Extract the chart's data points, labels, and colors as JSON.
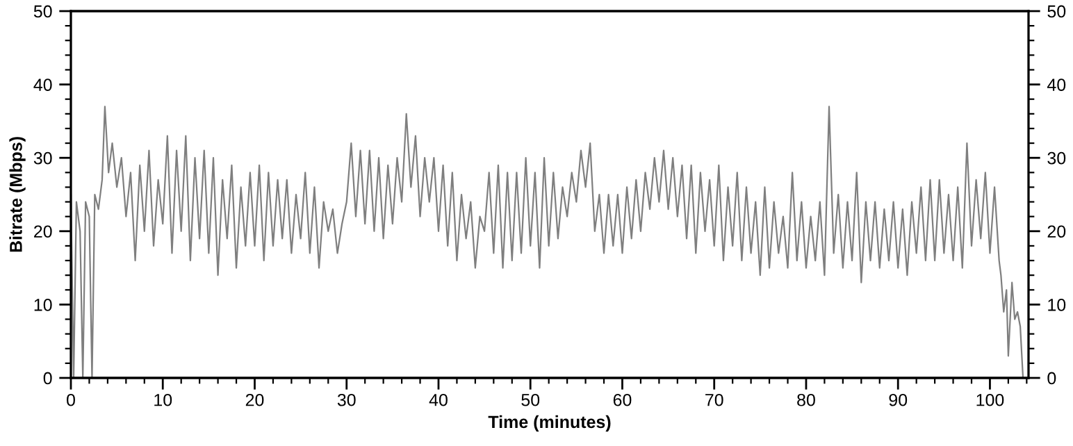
{
  "chart_data": {
    "type": "line",
    "xlabel": "Time (minutes)",
    "ylabel": "Bitrate (Mbps)",
    "xlim": [
      0,
      104.2
    ],
    "ylim": [
      0,
      50
    ],
    "y2lim": [
      0,
      50
    ],
    "xticks": [
      0,
      {
        "value": 2,
        "label": null
      },
      {
        "value": 4,
        "label": null
      },
      {
        "value": 6,
        "label": null
      },
      {
        "value": 8,
        "label": null
      },
      10,
      {
        "value": 12,
        "label": null
      },
      {
        "value": 14,
        "label": null
      },
      {
        "value": 16,
        "label": null
      },
      {
        "value": 18,
        "label": null
      },
      20,
      {
        "value": 22,
        "label": null
      },
      {
        "value": 24,
        "label": null
      },
      {
        "value": 26,
        "label": null
      },
      {
        "value": 28,
        "label": null
      },
      30,
      {
        "value": 32,
        "label": null
      },
      {
        "value": 34,
        "label": null
      },
      {
        "value": 36,
        "label": null
      },
      {
        "value": 38,
        "label": null
      },
      40,
      {
        "value": 42,
        "label": null
      },
      {
        "value": 44,
        "label": null
      },
      {
        "value": 46,
        "label": null
      },
      {
        "value": 48,
        "label": null
      },
      50,
      {
        "value": 52,
        "label": null
      },
      {
        "value": 54,
        "label": null
      },
      {
        "value": 56,
        "label": null
      },
      {
        "value": 58,
        "label": null
      },
      60,
      {
        "value": 62,
        "label": null
      },
      {
        "value": 64,
        "label": null
      },
      {
        "value": 66,
        "label": null
      },
      {
        "value": 68,
        "label": null
      },
      70,
      {
        "value": 72,
        "label": null
      },
      {
        "value": 74,
        "label": null
      },
      {
        "value": 76,
        "label": null
      },
      {
        "value": 78,
        "label": null
      },
      80,
      {
        "value": 82,
        "label": null
      },
      {
        "value": 84,
        "label": null
      },
      {
        "value": 86,
        "label": null
      },
      {
        "value": 88,
        "label": null
      },
      90,
      {
        "value": 92,
        "label": null
      },
      {
        "value": 94,
        "label": null
      },
      {
        "value": 96,
        "label": null
      },
      {
        "value": 98,
        "label": null
      },
      100,
      {
        "value": 102,
        "label": null
      },
      {
        "value": 104,
        "label": null
      }
    ],
    "yticks": [
      0,
      {
        "value": 2,
        "label": null
      },
      {
        "value": 4,
        "label": null
      },
      {
        "value": 6,
        "label": null
      },
      {
        "value": 8,
        "label": null
      },
      10,
      {
        "value": 12,
        "label": null
      },
      {
        "value": 14,
        "label": null
      },
      {
        "value": 16,
        "label": null
      },
      {
        "value": 18,
        "label": null
      },
      20,
      {
        "value": 22,
        "label": null
      },
      {
        "value": 24,
        "label": null
      },
      {
        "value": 26,
        "label": null
      },
      {
        "value": 28,
        "label": null
      },
      30,
      {
        "value": 32,
        "label": null
      },
      {
        "value": 34,
        "label": null
      },
      {
        "value": 36,
        "label": null
      },
      {
        "value": 38,
        "label": null
      },
      40,
      {
        "value": 42,
        "label": null
      },
      {
        "value": 44,
        "label": null
      },
      {
        "value": 46,
        "label": null
      },
      {
        "value": 48,
        "label": null
      },
      50
    ],
    "y2ticks": [
      0,
      {
        "value": 2,
        "label": null
      },
      {
        "value": 4,
        "label": null
      },
      {
        "value": 6,
        "label": null
      },
      {
        "value": 8,
        "label": null
      },
      10,
      {
        "value": 12,
        "label": null
      },
      {
        "value": 14,
        "label": null
      },
      {
        "value": 16,
        "label": null
      },
      {
        "value": 18,
        "label": null
      },
      20,
      {
        "value": 22,
        "label": null
      },
      {
        "value": 24,
        "label": null
      },
      {
        "value": 26,
        "label": null
      },
      {
        "value": 28,
        "label": null
      },
      30,
      {
        "value": 32,
        "label": null
      },
      {
        "value": 34,
        "label": null
      },
      {
        "value": 36,
        "label": null
      },
      {
        "value": 38,
        "label": null
      },
      40,
      {
        "value": 42,
        "label": null
      },
      {
        "value": 44,
        "label": null
      },
      {
        "value": 46,
        "label": null
      },
      {
        "value": 48,
        "label": null
      },
      50
    ],
    "grid": false,
    "legend": false,
    "marker": "none",
    "line_style": "solid",
    "series": [
      {
        "color": "#7f7f7f",
        "x": [
          0,
          0.3,
          0.6,
          1.0,
          1.3,
          1.6,
          2.0,
          2.3,
          2.6,
          3.0,
          3.4,
          3.7,
          4.1,
          4.5,
          5,
          5.5,
          6,
          6.5,
          7,
          7.5,
          8,
          8.5,
          9,
          9.5,
          10,
          10.5,
          11,
          11.5,
          12,
          12.5,
          13,
          13.5,
          14,
          14.5,
          15,
          15.5,
          16,
          16.5,
          17,
          17.5,
          18,
          18.5,
          19,
          19.5,
          20,
          20.5,
          21,
          21.5,
          22,
          22.5,
          23,
          23.5,
          24,
          24.5,
          25,
          25.5,
          26,
          26.5,
          27,
          27.5,
          28,
          28.5,
          29,
          29.5,
          30,
          30.5,
          31,
          31.5,
          32,
          32.5,
          33,
          33.5,
          34,
          34.5,
          35,
          35.5,
          36,
          36.5,
          37,
          37.5,
          38,
          38.5,
          39,
          39.5,
          40,
          40.5,
          41,
          41.5,
          42,
          42.5,
          43,
          43.5,
          44,
          44.5,
          45,
          45.5,
          46,
          46.5,
          47,
          47.5,
          48,
          48.5,
          49,
          49.5,
          50,
          50.5,
          51,
          51.5,
          52,
          52.5,
          53,
          53.5,
          54,
          54.5,
          55,
          55.5,
          56,
          56.5,
          57,
          57.5,
          58,
          58.5,
          59,
          59.5,
          60,
          60.5,
          61,
          61.5,
          62,
          62.5,
          63,
          63.5,
          64,
          64.5,
          65,
          65.5,
          66,
          66.5,
          67,
          67.5,
          68,
          68.5,
          69,
          69.5,
          70,
          70.5,
          71,
          71.5,
          72,
          72.5,
          73,
          73.5,
          74,
          74.5,
          75,
          75.5,
          76,
          76.5,
          77,
          77.5,
          78,
          78.5,
          79,
          79.5,
          80,
          80.5,
          81,
          81.5,
          82,
          82.5,
          83,
          83.5,
          84,
          84.5,
          85,
          85.5,
          86,
          86.5,
          87,
          87.5,
          88,
          88.5,
          89,
          89.5,
          90,
          90.5,
          91,
          91.5,
          92,
          92.5,
          93,
          93.5,
          94,
          94.5,
          95,
          95.5,
          96,
          96.5,
          97,
          97.5,
          98,
          98.5,
          99,
          99.5,
          100,
          100.5,
          101,
          101.2,
          101.5,
          101.8,
          102,
          102.4,
          102.7,
          103,
          103.3,
          103.6
        ],
        "values": [
          25,
          0,
          24,
          20,
          0,
          24,
          22,
          0,
          25,
          23,
          27,
          37,
          28,
          32,
          26,
          30,
          22,
          28,
          16,
          29,
          20,
          31,
          18,
          27,
          21,
          33,
          17,
          31,
          20,
          33,
          16,
          30,
          19,
          31,
          17,
          30,
          14,
          27,
          19,
          29,
          15,
          26,
          18,
          28,
          18,
          29,
          16,
          28,
          18,
          27,
          19,
          27,
          17,
          25,
          19,
          28,
          17,
          26,
          15,
          24,
          20,
          23,
          17,
          21,
          24,
          32,
          22,
          31,
          21,
          31,
          20,
          30,
          19,
          29,
          21,
          30,
          24,
          36,
          26,
          33,
          22,
          30,
          24,
          30,
          20,
          29,
          18,
          28,
          16,
          25,
          19,
          24,
          15,
          22,
          20,
          28,
          17,
          29,
          15,
          28,
          16,
          28,
          17,
          30,
          18,
          28,
          15,
          30,
          18,
          28,
          19,
          26,
          22,
          28,
          24,
          31,
          26,
          32,
          20,
          25,
          17,
          25,
          18,
          25,
          17,
          26,
          19,
          27,
          20,
          28,
          23,
          30,
          24,
          31,
          23,
          30,
          22,
          29,
          19,
          29,
          17,
          28,
          20,
          27,
          18,
          29,
          16,
          26,
          18,
          28,
          16,
          26,
          17,
          24,
          14,
          26,
          15,
          24,
          17,
          22,
          15,
          28,
          16,
          24,
          15,
          22,
          16,
          24,
          14,
          37,
          17,
          25,
          15,
          24,
          16,
          28,
          13,
          24,
          16,
          24,
          15,
          23,
          16,
          24,
          15,
          23,
          14,
          24,
          17,
          26,
          16,
          27,
          16,
          27,
          17,
          25,
          16,
          26,
          15,
          32,
          18,
          27,
          19,
          28,
          17,
          26,
          16,
          14,
          9,
          12,
          3,
          13,
          8,
          9,
          7,
          0
        ]
      }
    ]
  }
}
